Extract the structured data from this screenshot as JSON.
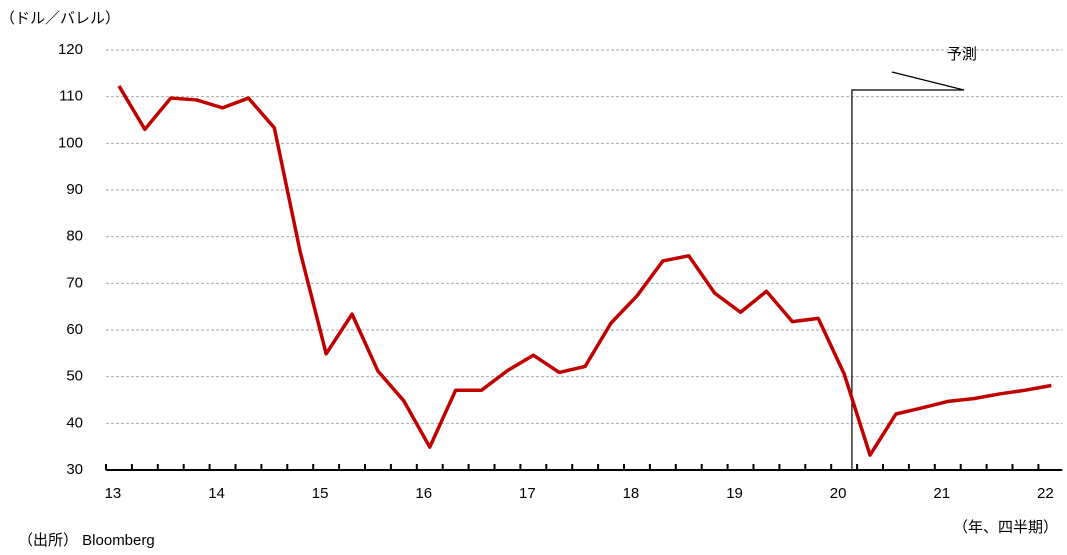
{
  "chart_data": {
    "type": "line",
    "y_axis_label": "（ドル／バレル）",
    "x_axis_label": "（年、四半期）",
    "source": "（出所） Bloomberg",
    "annotation": "予測",
    "categories": [
      "13",
      null,
      null,
      null,
      "14",
      null,
      null,
      null,
      "15",
      null,
      null,
      null,
      "16",
      null,
      null,
      null,
      "17",
      null,
      null,
      null,
      "18",
      null,
      null,
      null,
      "19",
      null,
      null,
      null,
      "20",
      null,
      null,
      null,
      "21",
      null,
      null,
      null,
      "22"
    ],
    "series": [
      {
        "name": "",
        "color": "#c00000",
        "values": [
          112.3,
          103,
          109.7,
          109.3,
          107.6,
          109.7,
          103.3,
          76.7,
          54.9,
          63.4,
          51.2,
          44.8,
          34.9,
          47.1,
          47.1,
          51.3,
          54.6,
          50.9,
          52.2,
          61.5,
          67.3,
          74.8,
          75.9,
          67.9,
          63.8,
          68.3,
          61.8,
          62.5,
          50.6,
          33.2,
          42,
          43.3,
          44.7,
          45.3,
          46.3,
          47.1,
          48.1
        ]
      }
    ],
    "ylim": [
      30,
      120
    ],
    "yticks": [
      30,
      40,
      50,
      60,
      70,
      80,
      90,
      100,
      110,
      120
    ],
    "grid": true
  }
}
